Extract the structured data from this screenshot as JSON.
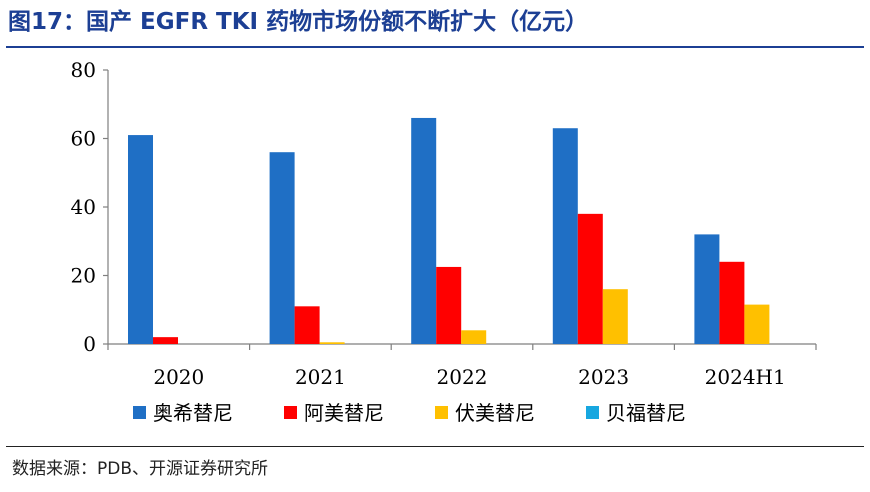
{
  "title": "图17：国产 EGFR TKI 药物市场份额不断扩大（亿元）",
  "source": "数据来源：PDB、开源证券研究所",
  "colors": {
    "title": "#1c3f94",
    "series": [
      "#1f6fc5",
      "#ff0000",
      "#ffc000",
      "#17a7e0"
    ]
  },
  "chart_data": {
    "type": "bar",
    "categories": [
      "2020",
      "2021",
      "2022",
      "2023",
      "2024H1"
    ],
    "series": [
      {
        "name": "奥希替尼",
        "values": [
          61,
          56,
          66,
          63,
          32
        ]
      },
      {
        "name": "阿美替尼",
        "values": [
          2,
          11,
          22.5,
          38,
          24
        ]
      },
      {
        "name": "伏美替尼",
        "values": [
          0,
          0.5,
          4,
          16,
          11.5
        ]
      },
      {
        "name": "贝福替尼",
        "values": [
          0,
          0,
          0,
          0,
          0
        ]
      }
    ],
    "ylim": [
      0,
      80
    ],
    "yticks": [
      "0",
      "20",
      "40",
      "60",
      "80"
    ],
    "grid": false,
    "legend_position": "bottom",
    "xlabel": "",
    "ylabel": ""
  }
}
